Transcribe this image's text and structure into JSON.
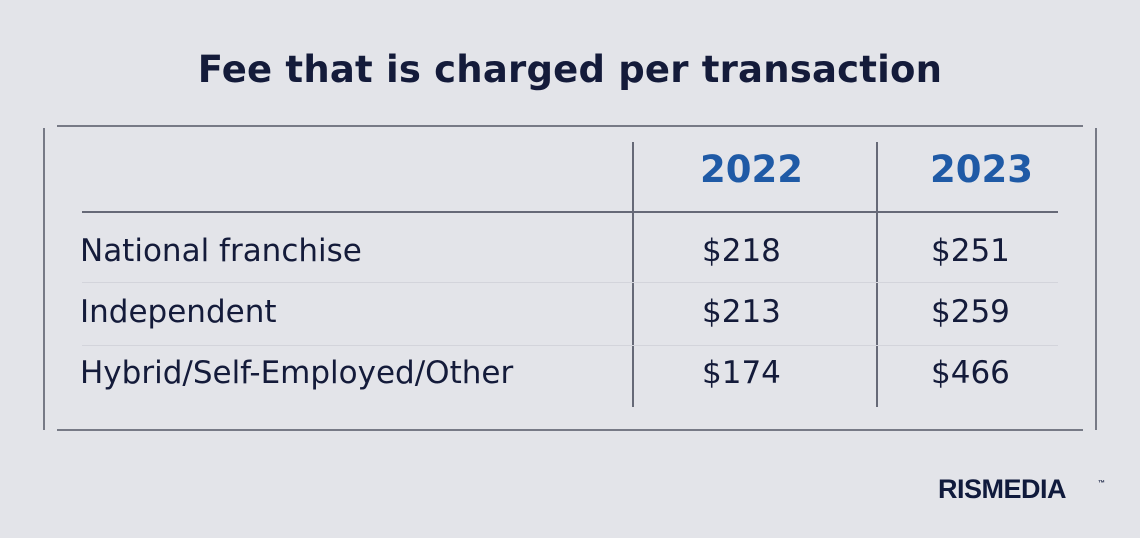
{
  "chart_data": {
    "type": "table",
    "title": "Fee that is charged per transaction",
    "columns": [
      "2022",
      "2023"
    ],
    "rows": [
      {
        "label": "National franchise",
        "values": [
          "$218",
          "$251"
        ]
      },
      {
        "label": "Independent",
        "values": [
          "$213",
          "$259"
        ]
      },
      {
        "label": "Hybrid/Self-Employed/Other",
        "values": [
          "$174",
          "$466"
        ]
      }
    ]
  },
  "brand": {
    "name": "RISMEDIA",
    "mark": "™"
  },
  "colors": {
    "background": "#e3e4e9",
    "text": "#141b3a",
    "header": "#1f5aa6"
  }
}
